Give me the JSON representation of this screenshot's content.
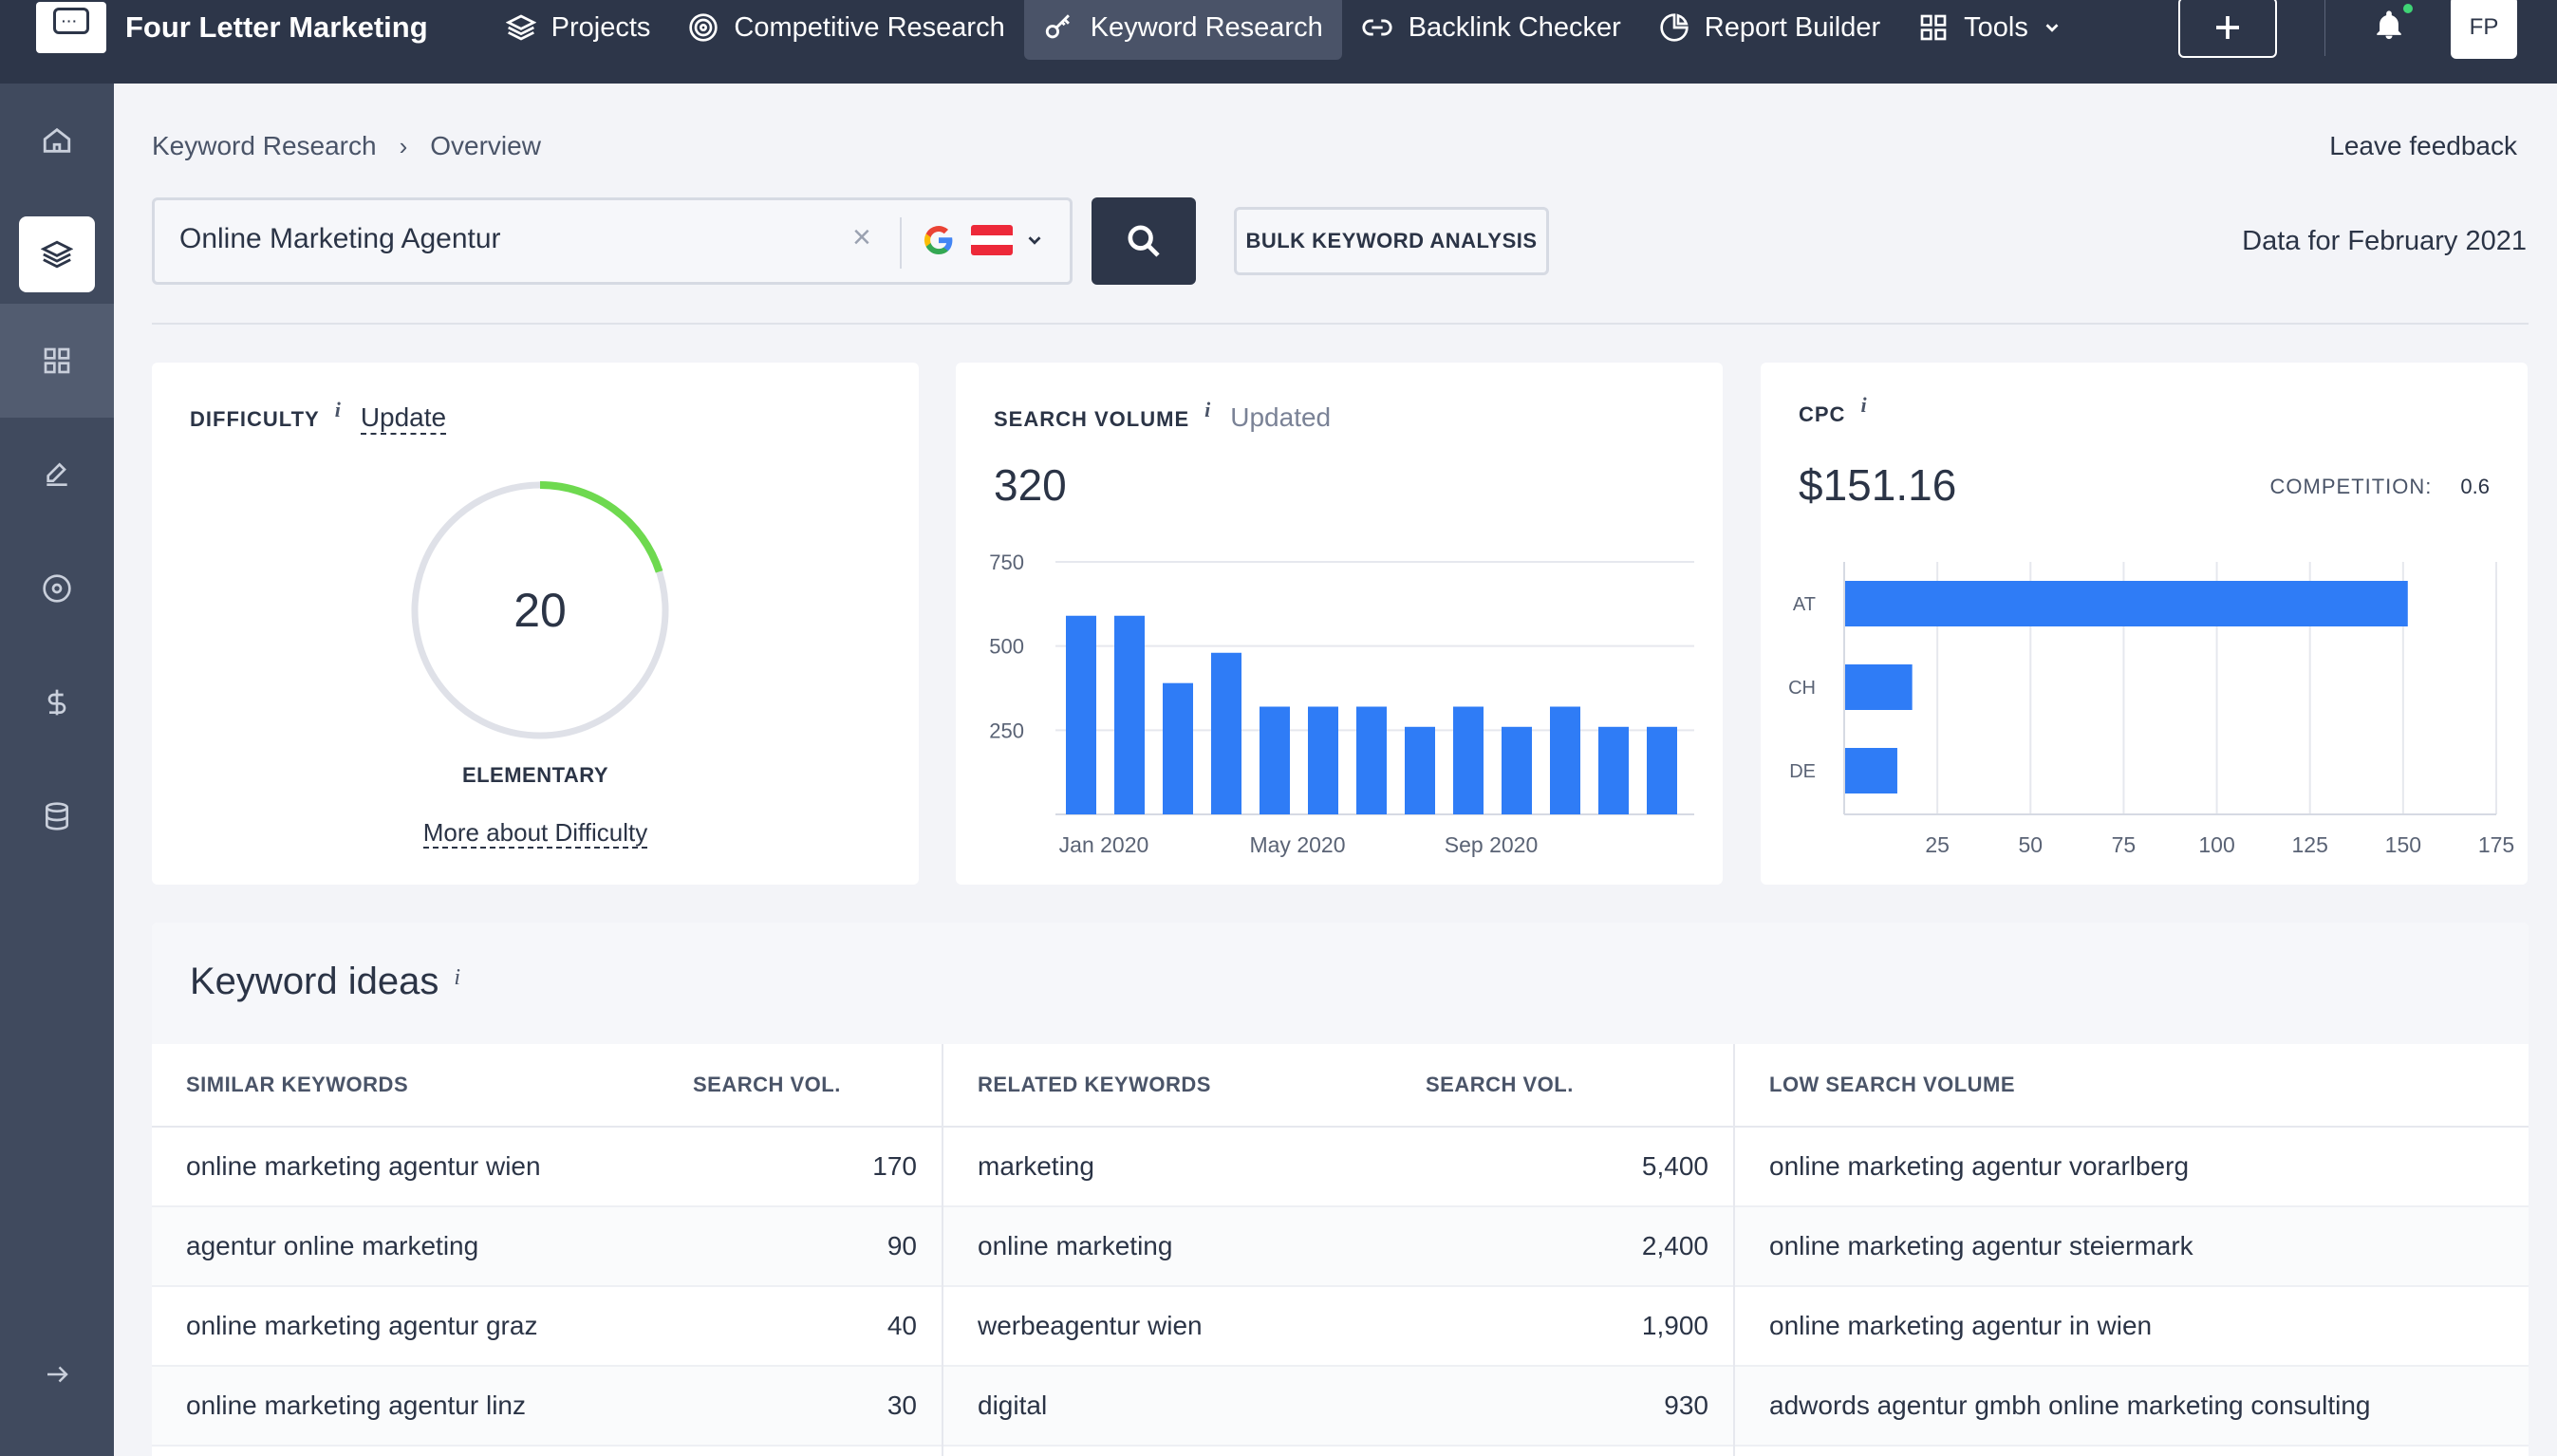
{
  "app": {
    "brand": "Four Letter Marketing"
  },
  "nav": {
    "items": [
      {
        "label": "Projects",
        "icon": "layers-icon"
      },
      {
        "label": "Competitive Research",
        "icon": "target-icon"
      },
      {
        "label": "Keyword Research",
        "icon": "key-icon",
        "active": true
      },
      {
        "label": "Backlink Checker",
        "icon": "link-icon"
      },
      {
        "label": "Report Builder",
        "icon": "pie-icon"
      },
      {
        "label": "Tools",
        "icon": "grid-icon"
      }
    ],
    "avatar": "FP"
  },
  "breadcrumb": {
    "first": "Keyword Research",
    "second": "Overview"
  },
  "feedback": "Leave feedback",
  "search": {
    "value": "Online Marketing Agentur",
    "placeholder": ""
  },
  "bulk_label": "BULK KEYWORD ANALYSIS",
  "data_for": "Data for February 2021",
  "difficulty": {
    "title": "DIFFICULTY",
    "info": "i",
    "update": "Update",
    "value": "20",
    "progress": 0.2,
    "level": "ELEMENTARY",
    "more": "More about Difficulty",
    "color": "#6ed94f"
  },
  "volume": {
    "title": "SEARCH VOLUME",
    "info": "i",
    "status": "Updated",
    "value": "320"
  },
  "cpc": {
    "title": "CPC",
    "info": "i",
    "value": "$151.16",
    "competition_label": "COMPETITION:",
    "competition_value": "0.6"
  },
  "chart_data": [
    {
      "type": "bar",
      "title": "SEARCH VOLUME",
      "categories": [
        "Jan 2020",
        "Feb 2020",
        "Mar 2020",
        "Apr 2020",
        "May 2020",
        "Jun 2020",
        "Jul 2020",
        "Aug 2020",
        "Sep 2020",
        "Oct 2020",
        "Nov 2020",
        "Dec 2020",
        "Jan 2021"
      ],
      "values": [
        590,
        590,
        390,
        480,
        320,
        320,
        320,
        260,
        320,
        260,
        320,
        260,
        260
      ],
      "x_tick_labels": [
        "Jan 2020",
        "May 2020",
        "Sep 2020"
      ],
      "y_ticks": [
        "250",
        "500",
        "750"
      ],
      "ylim": [
        0,
        750
      ],
      "grid": true,
      "color": "#2f7cf6"
    },
    {
      "type": "bar",
      "orientation": "horizontal",
      "categories": [
        "AT",
        "CH",
        "DE"
      ],
      "values": [
        151,
        18,
        14
      ],
      "x_ticks": [
        "25",
        "50",
        "75",
        "100",
        "125",
        "150",
        "175"
      ],
      "xlim": [
        0,
        175
      ],
      "grid": true,
      "color": "#2f7cf6"
    }
  ],
  "keyword_ideas": {
    "title": "Keyword ideas",
    "info": "i",
    "similar": {
      "header": "SIMILAR KEYWORDS",
      "vol_header": "SEARCH VOL.",
      "rows": [
        {
          "keyword": "online marketing agentur wien",
          "vol": "170"
        },
        {
          "keyword": "agentur online marketing",
          "vol": "90"
        },
        {
          "keyword": "online marketing agentur graz",
          "vol": "40"
        },
        {
          "keyword": "online marketing agentur linz",
          "vol": "30"
        }
      ]
    },
    "related": {
      "header": "RELATED KEYWORDS",
      "vol_header": "SEARCH VOL.",
      "rows": [
        {
          "keyword": "marketing",
          "vol": "5,400"
        },
        {
          "keyword": "online marketing",
          "vol": "2,400"
        },
        {
          "keyword": "werbeagentur wien",
          "vol": "1,900"
        },
        {
          "keyword": "digital",
          "vol": "930"
        }
      ]
    },
    "low": {
      "header": "LOW SEARCH VOLUME",
      "rows": [
        {
          "keyword": "online marketing agentur vorarlberg"
        },
        {
          "keyword": "online marketing agentur steiermark"
        },
        {
          "keyword": "online marketing agentur in wien"
        },
        {
          "keyword": "adwords agentur gmbh online marketing consulting"
        }
      ]
    }
  }
}
